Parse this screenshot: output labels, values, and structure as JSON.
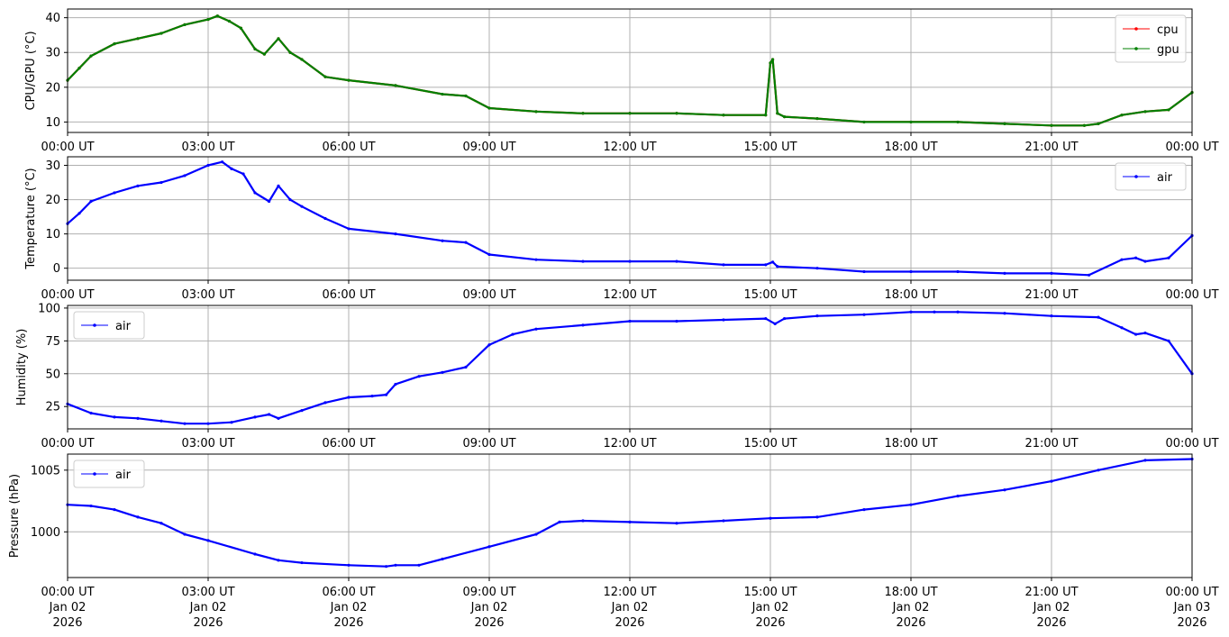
{
  "chart_data": [
    {
      "type": "line",
      "ylabel": "CPU/GPU (°C)",
      "ylim": [
        7,
        42.5
      ],
      "yticks": [
        10,
        20,
        30,
        40
      ],
      "xticks": [
        "00:00 UT",
        "03:00 UT",
        "06:00 UT",
        "09:00 UT",
        "12:00 UT",
        "15:00 UT",
        "18:00 UT",
        "21:00 UT",
        "00:00 UT"
      ],
      "grid": true,
      "legend_position": "top-right",
      "series": [
        {
          "name": "cpu",
          "color": "#ff0000",
          "x": [
            0,
            0.25,
            0.5,
            1,
            1.5,
            2,
            2.5,
            3,
            3.2,
            3.45,
            3.7,
            4,
            4.2,
            4.5,
            4.75,
            5,
            5.5,
            6,
            7,
            8,
            8.5,
            9,
            10,
            11,
            12,
            13,
            14,
            14.9,
            15.0,
            15.05,
            15.15,
            15.3,
            16,
            17,
            18,
            19,
            20,
            21,
            21.7,
            22,
            22.5,
            23,
            23.5,
            24
          ],
          "values": [
            22,
            25.5,
            29,
            32.5,
            34,
            35.5,
            38,
            39.5,
            40.5,
            39,
            37,
            31,
            29.5,
            34,
            30,
            28,
            23,
            22,
            20.5,
            18,
            17.5,
            14,
            13,
            12.5,
            12.5,
            12.5,
            12,
            12,
            27,
            28,
            12.5,
            11.5,
            11,
            10,
            10,
            10,
            9.5,
            9,
            9,
            9.5,
            12,
            13,
            13.5,
            18.5
          ]
        },
        {
          "name": "gpu",
          "color": "#008000",
          "x": [
            0,
            0.25,
            0.5,
            1,
            1.5,
            2,
            2.5,
            3,
            3.2,
            3.45,
            3.7,
            4,
            4.2,
            4.5,
            4.75,
            5,
            5.5,
            6,
            7,
            8,
            8.5,
            9,
            10,
            11,
            12,
            13,
            14,
            14.9,
            15.0,
            15.05,
            15.15,
            15.3,
            16,
            17,
            18,
            19,
            20,
            21,
            21.7,
            22,
            22.5,
            23,
            23.5,
            24
          ],
          "values": [
            22,
            25.5,
            29,
            32.5,
            34,
            35.5,
            38,
            39.5,
            40.5,
            39,
            37,
            31,
            29.5,
            34,
            30,
            28,
            23,
            22,
            20.5,
            18,
            17.5,
            14,
            13,
            12.5,
            12.5,
            12.5,
            12,
            12,
            27,
            28,
            12.5,
            11.5,
            11,
            10,
            10,
            10,
            9.5,
            9,
            9,
            9.5,
            12,
            13,
            13.5,
            18.5
          ]
        }
      ]
    },
    {
      "type": "line",
      "ylabel": "Temperature (°C)",
      "ylim": [
        -3.5,
        32.5
      ],
      "yticks": [
        0,
        10,
        20,
        30
      ],
      "xticks": [
        "00:00 UT",
        "03:00 UT",
        "06:00 UT",
        "09:00 UT",
        "12:00 UT",
        "15:00 UT",
        "18:00 UT",
        "21:00 UT",
        "00:00 UT"
      ],
      "grid": true,
      "legend_position": "top-right",
      "series": [
        {
          "name": "air",
          "color": "#0000ff",
          "x": [
            0,
            0.25,
            0.5,
            1,
            1.5,
            2,
            2.5,
            3,
            3.3,
            3.5,
            3.75,
            4,
            4.3,
            4.5,
            4.75,
            5,
            5.5,
            6,
            7,
            8,
            8.5,
            9,
            10,
            11,
            12,
            13,
            14,
            14.9,
            15.05,
            15.15,
            16,
            17,
            18,
            19,
            20,
            21,
            21.8,
            22.5,
            22.8,
            23,
            23.5,
            24
          ],
          "values": [
            13,
            16,
            19.5,
            22,
            24,
            25,
            27,
            30,
            31,
            29,
            27.5,
            22,
            19.5,
            24,
            20,
            18,
            14.5,
            11.5,
            10,
            8,
            7.5,
            4,
            2.5,
            2,
            2,
            2,
            1,
            1,
            1.8,
            0.5,
            0,
            -1,
            -1,
            -1,
            -1.5,
            -1.5,
            -2,
            2.5,
            3,
            2,
            3,
            9.5
          ]
        }
      ]
    },
    {
      "type": "line",
      "ylabel": "Humidity (%)",
      "ylim": [
        8,
        102
      ],
      "yticks": [
        25,
        50,
        75,
        100
      ],
      "xticks": [
        "00:00 UT",
        "03:00 UT",
        "06:00 UT",
        "09:00 UT",
        "12:00 UT",
        "15:00 UT",
        "18:00 UT",
        "21:00 UT",
        "00:00 UT"
      ],
      "grid": true,
      "legend_position": "top-left",
      "series": [
        {
          "name": "air",
          "color": "#0000ff",
          "x": [
            0,
            0.5,
            1,
            1.5,
            2,
            2.5,
            3,
            3.5,
            4,
            4.3,
            4.5,
            5,
            5.5,
            6,
            6.5,
            6.8,
            7,
            7.5,
            8,
            8.5,
            9,
            9.5,
            10,
            11,
            12,
            13,
            14,
            14.9,
            15.1,
            15.3,
            16,
            17,
            18,
            18.5,
            19,
            20,
            21,
            22,
            22.5,
            22.8,
            23,
            23.5,
            24
          ],
          "values": [
            27,
            20,
            17,
            16,
            14,
            12,
            12,
            13,
            17,
            19,
            16,
            22,
            28,
            32,
            33,
            34,
            42,
            48,
            51,
            55,
            72,
            80,
            84,
            87,
            90,
            90,
            91,
            92,
            88,
            92,
            94,
            95,
            97,
            97,
            97,
            96,
            94,
            93,
            85,
            80,
            81,
            75,
            50
          ]
        }
      ]
    },
    {
      "type": "line",
      "ylabel": "Pressure (hPa)",
      "ylim": [
        996.3,
        1006.3
      ],
      "yticks": [
        1000,
        1005
      ],
      "xticks": [
        "00:00 UT\nJan 02\n2026",
        "03:00 UT\nJan 02\n2026",
        "06:00 UT\nJan 02\n2026",
        "09:00 UT\nJan 02\n2026",
        "12:00 UT\nJan 02\n2026",
        "15:00 UT\nJan 02\n2026",
        "18:00 UT\nJan 02\n2026",
        "21:00 UT\nJan 02\n2026",
        "00:00 UT\nJan 03\n2026"
      ],
      "grid": true,
      "legend_position": "top-left",
      "series": [
        {
          "name": "air",
          "color": "#0000ff",
          "x": [
            0,
            0.5,
            1,
            1.5,
            2,
            2.5,
            3,
            4,
            4.5,
            5,
            6,
            6.8,
            7,
            7.5,
            8,
            9,
            10,
            10.5,
            11,
            12,
            13,
            14,
            15,
            16,
            17,
            18,
            19,
            20,
            21,
            22,
            23,
            24
          ],
          "values": [
            1002.2,
            1002.1,
            1001.8,
            1001.2,
            1000.7,
            999.8,
            999.3,
            998.2,
            997.7,
            997.5,
            997.3,
            997.2,
            997.3,
            997.3,
            997.8,
            998.8,
            999.8,
            1000.8,
            1000.9,
            1000.8,
            1000.7,
            1000.9,
            1001.1,
            1001.2,
            1001.8,
            1002.2,
            1002.9,
            1003.4,
            1004.1,
            1005.0,
            1005.8,
            1005.9
          ]
        }
      ]
    }
  ]
}
